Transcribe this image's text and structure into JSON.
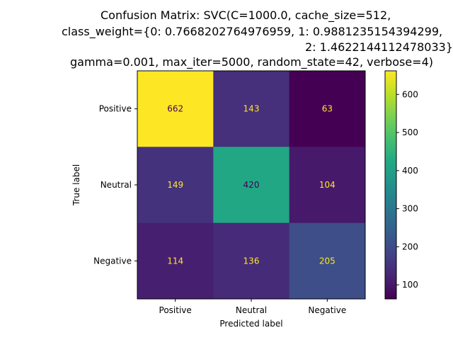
{
  "chart_data": {
    "type": "heatmap",
    "title_lines": [
      "Confusion Matrix: SVC(C=1000.0, cache_size=512,",
      "class_weight={0: 0.7668202764976959, 1: 0.9881235154394299,",
      "2: 1.4622144112478033},",
      "gamma=0.001, max_iter=5000, random_state=42, verbose=4)"
    ],
    "xlabel": "Predicted label",
    "ylabel": "True label",
    "x_categories": [
      "Positive",
      "Neutral",
      "Negative"
    ],
    "y_categories": [
      "Positive",
      "Neutral",
      "Negative"
    ],
    "values": [
      [
        662,
        143,
        63
      ],
      [
        149,
        420,
        104
      ],
      [
        114,
        136,
        205
      ]
    ],
    "colormap": "viridis",
    "color_range": [
      63,
      662
    ],
    "colorbar_ticks": [
      100,
      200,
      300,
      400,
      500,
      600
    ],
    "text_color_dark_cells": "#fde725",
    "text_color_light_cells": "#440154"
  }
}
